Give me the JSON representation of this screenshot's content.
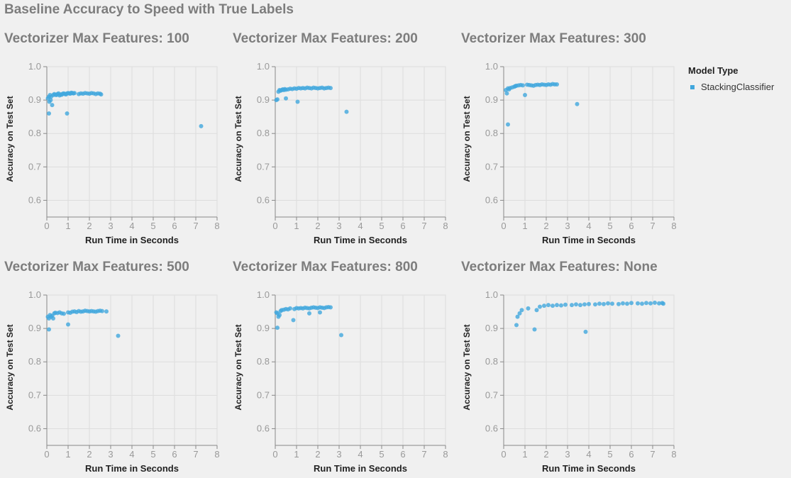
{
  "title": "Baseline Accuracy to Speed with True Labels",
  "legend": {
    "title": "Model Type",
    "items": [
      "StackingClassifier"
    ]
  },
  "colors": {
    "point": "#41a7dd",
    "grid": "#dddddd",
    "axis": "#888888",
    "tick_text": "#999999",
    "label_text": "#222222",
    "background": "#f0f0f0"
  },
  "chart_data": [
    {
      "type": "scatter",
      "title": "Vectorizer Max Features: 100",
      "xlabel": "Run Time in Seconds",
      "ylabel": "Accuracy on Test Set",
      "xlim": [
        0,
        8
      ],
      "ylim": [
        0.55,
        1.0
      ],
      "xticks": [
        0,
        1,
        2,
        3,
        4,
        5,
        6,
        7,
        8
      ],
      "yticks": [
        0.6,
        0.7,
        0.8,
        0.9,
        1.0
      ],
      "grid": true,
      "series": [
        {
          "name": "StackingClassifier",
          "points": [
            [
              0.05,
              0.905
            ],
            [
              0.1,
              0.91
            ],
            [
              0.12,
              0.895
            ],
            [
              0.15,
              0.915
            ],
            [
              0.18,
              0.9
            ],
            [
              0.2,
              0.91
            ],
            [
              0.25,
              0.885
            ],
            [
              0.3,
              0.915
            ],
            [
              0.35,
              0.918
            ],
            [
              0.4,
              0.916
            ],
            [
              0.45,
              0.915
            ],
            [
              0.5,
              0.918
            ],
            [
              0.55,
              0.92
            ],
            [
              0.6,
              0.914
            ],
            [
              0.65,
              0.917
            ],
            [
              0.7,
              0.916
            ],
            [
              0.75,
              0.919
            ],
            [
              0.8,
              0.92
            ],
            [
              0.85,
              0.918
            ],
            [
              0.9,
              0.917
            ],
            [
              0.95,
              0.92
            ],
            [
              1.0,
              0.921
            ],
            [
              1.05,
              0.92
            ],
            [
              1.1,
              0.919
            ],
            [
              1.15,
              0.922
            ],
            [
              1.2,
              0.921
            ],
            [
              1.25,
              0.92
            ],
            [
              1.3,
              0.921
            ],
            [
              1.5,
              0.918
            ],
            [
              1.6,
              0.92
            ],
            [
              1.7,
              0.919
            ],
            [
              1.8,
              0.921
            ],
            [
              1.9,
              0.92
            ],
            [
              2.0,
              0.919
            ],
            [
              2.1,
              0.921
            ],
            [
              2.2,
              0.92
            ],
            [
              2.3,
              0.918
            ],
            [
              2.4,
              0.92
            ],
            [
              2.5,
              0.919
            ],
            [
              2.55,
              0.917
            ],
            [
              0.1,
              0.86
            ],
            [
              0.95,
              0.86
            ],
            [
              7.25,
              0.822
            ]
          ]
        }
      ]
    },
    {
      "type": "scatter",
      "title": "Vectorizer Max Features: 200",
      "xlabel": "Run Time in Seconds",
      "ylabel": "Accuracy on Test Set",
      "xlim": [
        0,
        8
      ],
      "ylim": [
        0.55,
        1.0
      ],
      "xticks": [
        0,
        1,
        2,
        3,
        4,
        5,
        6,
        7,
        8
      ],
      "yticks": [
        0.6,
        0.7,
        0.8,
        0.9,
        1.0
      ],
      "grid": true,
      "series": [
        {
          "name": "StackingClassifier",
          "points": [
            [
              0.05,
              0.9
            ],
            [
              0.1,
              0.902
            ],
            [
              0.15,
              0.925
            ],
            [
              0.2,
              0.93
            ],
            [
              0.25,
              0.928
            ],
            [
              0.3,
              0.93
            ],
            [
              0.35,
              0.932
            ],
            [
              0.4,
              0.93
            ],
            [
              0.45,
              0.933
            ],
            [
              0.5,
              0.931
            ],
            [
              0.6,
              0.932
            ],
            [
              0.7,
              0.934
            ],
            [
              0.8,
              0.933
            ],
            [
              0.9,
              0.935
            ],
            [
              1.0,
              0.934
            ],
            [
              1.1,
              0.936
            ],
            [
              1.2,
              0.935
            ],
            [
              1.3,
              0.936
            ],
            [
              1.4,
              0.935
            ],
            [
              1.5,
              0.937
            ],
            [
              1.6,
              0.936
            ],
            [
              1.7,
              0.935
            ],
            [
              1.8,
              0.937
            ],
            [
              1.9,
              0.936
            ],
            [
              2.0,
              0.935
            ],
            [
              2.1,
              0.936
            ],
            [
              2.2,
              0.937
            ],
            [
              2.3,
              0.935
            ],
            [
              2.4,
              0.936
            ],
            [
              2.5,
              0.937
            ],
            [
              2.6,
              0.936
            ],
            [
              0.5,
              0.905
            ],
            [
              1.05,
              0.895
            ],
            [
              3.35,
              0.865
            ]
          ]
        }
      ]
    },
    {
      "type": "scatter",
      "title": "Vectorizer Max Features: 300",
      "xlabel": "Run Time in Seconds",
      "ylabel": "Accuracy on Test Set",
      "xlim": [
        0,
        8
      ],
      "ylim": [
        0.55,
        1.0
      ],
      "xticks": [
        0,
        1,
        2,
        3,
        4,
        5,
        6,
        7,
        8
      ],
      "yticks": [
        0.6,
        0.7,
        0.8,
        0.9,
        1.0
      ],
      "grid": true,
      "series": [
        {
          "name": "StackingClassifier",
          "points": [
            [
              0.1,
              0.93
            ],
            [
              0.15,
              0.92
            ],
            [
              0.2,
              0.935
            ],
            [
              0.25,
              0.932
            ],
            [
              0.3,
              0.936
            ],
            [
              0.4,
              0.938
            ],
            [
              0.5,
              0.94
            ],
            [
              0.55,
              0.942
            ],
            [
              0.6,
              0.943
            ],
            [
              0.7,
              0.944
            ],
            [
              0.8,
              0.945
            ],
            [
              0.9,
              0.944
            ],
            [
              1.1,
              0.946
            ],
            [
              1.2,
              0.945
            ],
            [
              1.3,
              0.944
            ],
            [
              1.4,
              0.943
            ],
            [
              1.5,
              0.945
            ],
            [
              1.6,
              0.946
            ],
            [
              1.7,
              0.945
            ],
            [
              1.8,
              0.947
            ],
            [
              1.9,
              0.946
            ],
            [
              2.0,
              0.945
            ],
            [
              2.1,
              0.947
            ],
            [
              2.2,
              0.946
            ],
            [
              2.3,
              0.948
            ],
            [
              2.4,
              0.947
            ],
            [
              2.5,
              0.947
            ],
            [
              0.2,
              0.827
            ],
            [
              1.0,
              0.915
            ],
            [
              3.45,
              0.888
            ]
          ]
        }
      ]
    },
    {
      "type": "scatter",
      "title": "Vectorizer Max Features: 500",
      "xlabel": "Run Time in Seconds",
      "ylabel": "Accuracy on Test Set",
      "xlim": [
        0,
        8
      ],
      "ylim": [
        0.55,
        1.0
      ],
      "xticks": [
        0,
        1,
        2,
        3,
        4,
        5,
        6,
        7,
        8
      ],
      "yticks": [
        0.6,
        0.7,
        0.8,
        0.9,
        1.0
      ],
      "grid": true,
      "series": [
        {
          "name": "StackingClassifier",
          "points": [
            [
              0.05,
              0.935
            ],
            [
              0.1,
              0.93
            ],
            [
              0.15,
              0.94
            ],
            [
              0.2,
              0.935
            ],
            [
              0.25,
              0.938
            ],
            [
              0.3,
              0.93
            ],
            [
              0.35,
              0.945
            ],
            [
              0.4,
              0.947
            ],
            [
              0.5,
              0.946
            ],
            [
              0.6,
              0.948
            ],
            [
              0.7,
              0.945
            ],
            [
              0.8,
              0.944
            ],
            [
              1.0,
              0.948
            ],
            [
              1.1,
              0.947
            ],
            [
              1.2,
              0.95
            ],
            [
              1.3,
              0.951
            ],
            [
              1.4,
              0.949
            ],
            [
              1.5,
              0.952
            ],
            [
              1.6,
              0.95
            ],
            [
              1.7,
              0.951
            ],
            [
              1.8,
              0.953
            ],
            [
              1.9,
              0.952
            ],
            [
              2.0,
              0.951
            ],
            [
              2.1,
              0.952
            ],
            [
              2.2,
              0.951
            ],
            [
              2.3,
              0.95
            ],
            [
              2.4,
              0.952
            ],
            [
              2.5,
              0.953
            ],
            [
              2.6,
              0.952
            ],
            [
              2.8,
              0.951
            ],
            [
              0.1,
              0.897
            ],
            [
              1.0,
              0.912
            ],
            [
              3.35,
              0.878
            ]
          ]
        }
      ]
    },
    {
      "type": "scatter",
      "title": "Vectorizer Max Features: 800",
      "xlabel": "Run Time in Seconds",
      "ylabel": "Accuracy on Test Set",
      "xlim": [
        0,
        8
      ],
      "ylim": [
        0.55,
        1.0
      ],
      "xticks": [
        0,
        1,
        2,
        3,
        4,
        5,
        6,
        7,
        8
      ],
      "yticks": [
        0.6,
        0.7,
        0.8,
        0.9,
        1.0
      ],
      "grid": true,
      "series": [
        {
          "name": "StackingClassifier",
          "points": [
            [
              0.05,
              0.948
            ],
            [
              0.1,
              0.945
            ],
            [
              0.15,
              0.935
            ],
            [
              0.2,
              0.94
            ],
            [
              0.25,
              0.952
            ],
            [
              0.3,
              0.955
            ],
            [
              0.4,
              0.956
            ],
            [
              0.5,
              0.958
            ],
            [
              0.6,
              0.957
            ],
            [
              0.7,
              0.96
            ],
            [
              0.9,
              0.958
            ],
            [
              1.0,
              0.961
            ],
            [
              1.1,
              0.96
            ],
            [
              1.2,
              0.961
            ],
            [
              1.3,
              0.96
            ],
            [
              1.4,
              0.962
            ],
            [
              1.5,
              0.961
            ],
            [
              1.6,
              0.96
            ],
            [
              1.7,
              0.962
            ],
            [
              1.8,
              0.963
            ],
            [
              1.9,
              0.962
            ],
            [
              2.0,
              0.961
            ],
            [
              2.1,
              0.963
            ],
            [
              2.2,
              0.962
            ],
            [
              2.3,
              0.961
            ],
            [
              2.4,
              0.963
            ],
            [
              2.5,
              0.964
            ],
            [
              2.6,
              0.963
            ],
            [
              0.1,
              0.902
            ],
            [
              0.85,
              0.925
            ],
            [
              1.6,
              0.945
            ],
            [
              2.1,
              0.948
            ],
            [
              3.1,
              0.88
            ]
          ]
        }
      ]
    },
    {
      "type": "scatter",
      "title": "Vectorizer Max Features: None",
      "xlabel": "Run Time in Seconds",
      "ylabel": "Accuracy on Test Set",
      "xlim": [
        0,
        8
      ],
      "ylim": [
        0.55,
        1.0
      ],
      "xticks": [
        0,
        1,
        2,
        3,
        4,
        5,
        6,
        7,
        8
      ],
      "yticks": [
        0.6,
        0.7,
        0.8,
        0.9,
        1.0
      ],
      "grid": true,
      "series": [
        {
          "name": "StackingClassifier",
          "points": [
            [
              0.6,
              0.91
            ],
            [
              0.65,
              0.935
            ],
            [
              0.75,
              0.945
            ],
            [
              0.85,
              0.955
            ],
            [
              1.15,
              0.96
            ],
            [
              1.55,
              0.955
            ],
            [
              1.7,
              0.965
            ],
            [
              1.9,
              0.968
            ],
            [
              2.1,
              0.97
            ],
            [
              2.3,
              0.968
            ],
            [
              2.5,
              0.97
            ],
            [
              2.7,
              0.969
            ],
            [
              2.9,
              0.971
            ],
            [
              3.2,
              0.97
            ],
            [
              3.4,
              0.972
            ],
            [
              3.6,
              0.97
            ],
            [
              3.8,
              0.972
            ],
            [
              4.0,
              0.973
            ],
            [
              4.3,
              0.972
            ],
            [
              4.5,
              0.974
            ],
            [
              4.7,
              0.973
            ],
            [
              4.9,
              0.975
            ],
            [
              5.1,
              0.974
            ],
            [
              5.4,
              0.973
            ],
            [
              5.6,
              0.975
            ],
            [
              5.8,
              0.974
            ],
            [
              6.0,
              0.976
            ],
            [
              6.3,
              0.975
            ],
            [
              6.5,
              0.974
            ],
            [
              6.7,
              0.976
            ],
            [
              6.9,
              0.975
            ],
            [
              7.1,
              0.977
            ],
            [
              7.3,
              0.975
            ],
            [
              7.45,
              0.976
            ],
            [
              7.5,
              0.974
            ],
            [
              1.45,
              0.897
            ],
            [
              3.85,
              0.89
            ]
          ]
        }
      ]
    }
  ]
}
